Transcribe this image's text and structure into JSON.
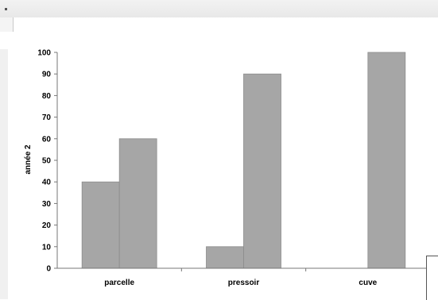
{
  "chart_data": {
    "type": "bar",
    "categories": [
      "parcelle",
      "pressoir",
      "cuve"
    ],
    "series": [
      {
        "values": [
          40,
          10,
          null
        ]
      },
      {
        "values": [
          60,
          90,
          100
        ]
      }
    ],
    "ylabel": "année 2",
    "xlabel": "",
    "ylim": [
      0,
      100
    ],
    "yticks": [
      0,
      10,
      20,
      30,
      40,
      50,
      60,
      70,
      80,
      90,
      100
    ],
    "grid": false,
    "legend": "none",
    "bar_color": "#a6a6a6"
  }
}
